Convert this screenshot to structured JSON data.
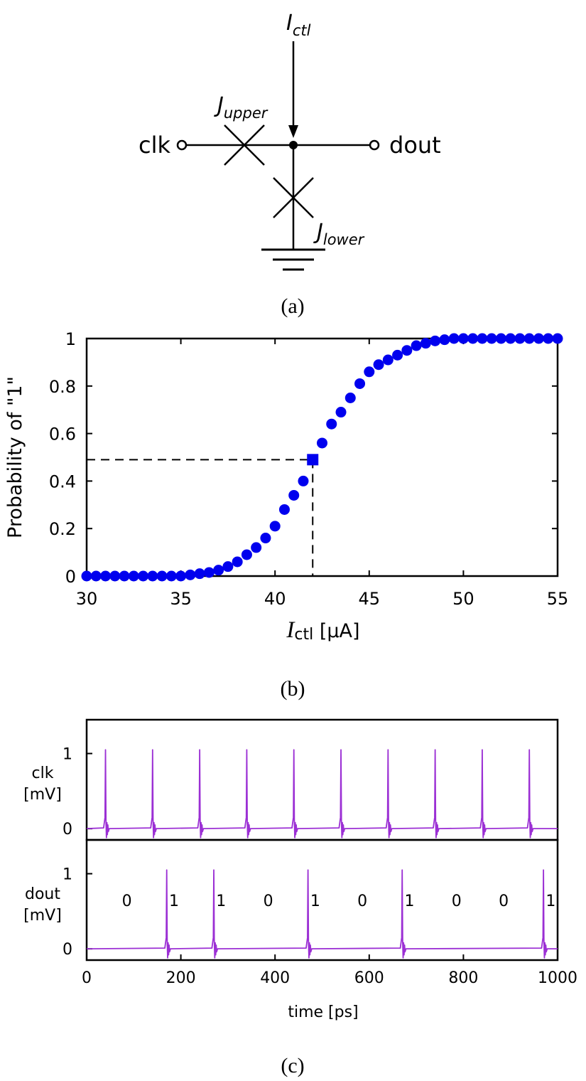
{
  "panel_a": {
    "caption": "(a)",
    "i_ctl_main": "I",
    "i_ctl_sub": "ctl",
    "j_upper_main": "J",
    "j_upper_sub": "upper",
    "j_lower_main": "J",
    "j_lower_sub": "lower",
    "clk_label": "clk",
    "dout_label": "dout"
  },
  "panel_b": {
    "caption": "(b)",
    "xlabel_main": "I",
    "xlabel_sub": "ctl",
    "xlabel_unit": " [μA]"
  },
  "panel_c": {
    "caption": "(c)",
    "bits": [
      "0",
      "1",
      "1",
      "0",
      "1",
      "0",
      "1",
      "0",
      "0",
      "1"
    ]
  },
  "chart_data": [
    {
      "type": "scatter",
      "xlabel": "Ictl [μA]",
      "ylabel": "Probability of \"1\"",
      "xlim": [
        30,
        55
      ],
      "ylim": [
        0,
        1
      ],
      "xticks": [
        "30",
        "35",
        "40",
        "45",
        "50",
        "55"
      ],
      "yticks": [
        "0",
        "0.2",
        "0.4",
        "0.6",
        "0.8",
        "1"
      ],
      "x": [
        30,
        30.5,
        31,
        31.5,
        32,
        32.5,
        33,
        33.5,
        34,
        34.5,
        35,
        35.5,
        36,
        36.5,
        37,
        37.5,
        38,
        38.5,
        39,
        39.5,
        40,
        40.5,
        41,
        41.5,
        42.5,
        43,
        43.5,
        44,
        44.5,
        45,
        45.5,
        46,
        46.5,
        47,
        47.5,
        48,
        48.5,
        49,
        49.5,
        50,
        50.5,
        51,
        51.5,
        52,
        52.5,
        53,
        53.5,
        54,
        54.5,
        55
      ],
      "y": [
        0,
        0,
        0,
        0,
        0,
        0,
        0,
        0,
        0,
        0,
        0,
        0.005,
        0.01,
        0.015,
        0.025,
        0.04,
        0.06,
        0.09,
        0.12,
        0.16,
        0.21,
        0.28,
        0.34,
        0.4,
        0.56,
        0.64,
        0.69,
        0.75,
        0.81,
        0.86,
        0.89,
        0.91,
        0.93,
        0.95,
        0.97,
        0.98,
        0.99,
        0.995,
        1,
        1,
        1,
        1,
        1,
        1,
        1,
        1,
        1,
        1,
        1,
        1
      ],
      "marker_color": "#0000ee",
      "highlight_point": {
        "x": 42,
        "y": 0.49,
        "marker": "square"
      },
      "reference_lines": "dashed",
      "grid": false
    },
    {
      "type": "line",
      "series": [
        {
          "name": "clk",
          "ylabel": "clk\n[mV]",
          "pulse_times": [
            40,
            140,
            240,
            340,
            440,
            540,
            640,
            740,
            840,
            940
          ],
          "peak": 1.05
        },
        {
          "name": "dout",
          "ylabel": "dout\n[mV]",
          "pulse_times": [
            170,
            270,
            470,
            670,
            970
          ],
          "peak": 1.05
        }
      ],
      "xlabel": "time [ps]",
      "xlim": [
        0,
        1000
      ],
      "ylim": [
        -0.15,
        1.45
      ],
      "xticks": [
        "0",
        "200",
        "400",
        "600",
        "800",
        "1000"
      ],
      "yticks": [
        "0",
        "1"
      ],
      "line_color": "#9b2fd4"
    }
  ]
}
